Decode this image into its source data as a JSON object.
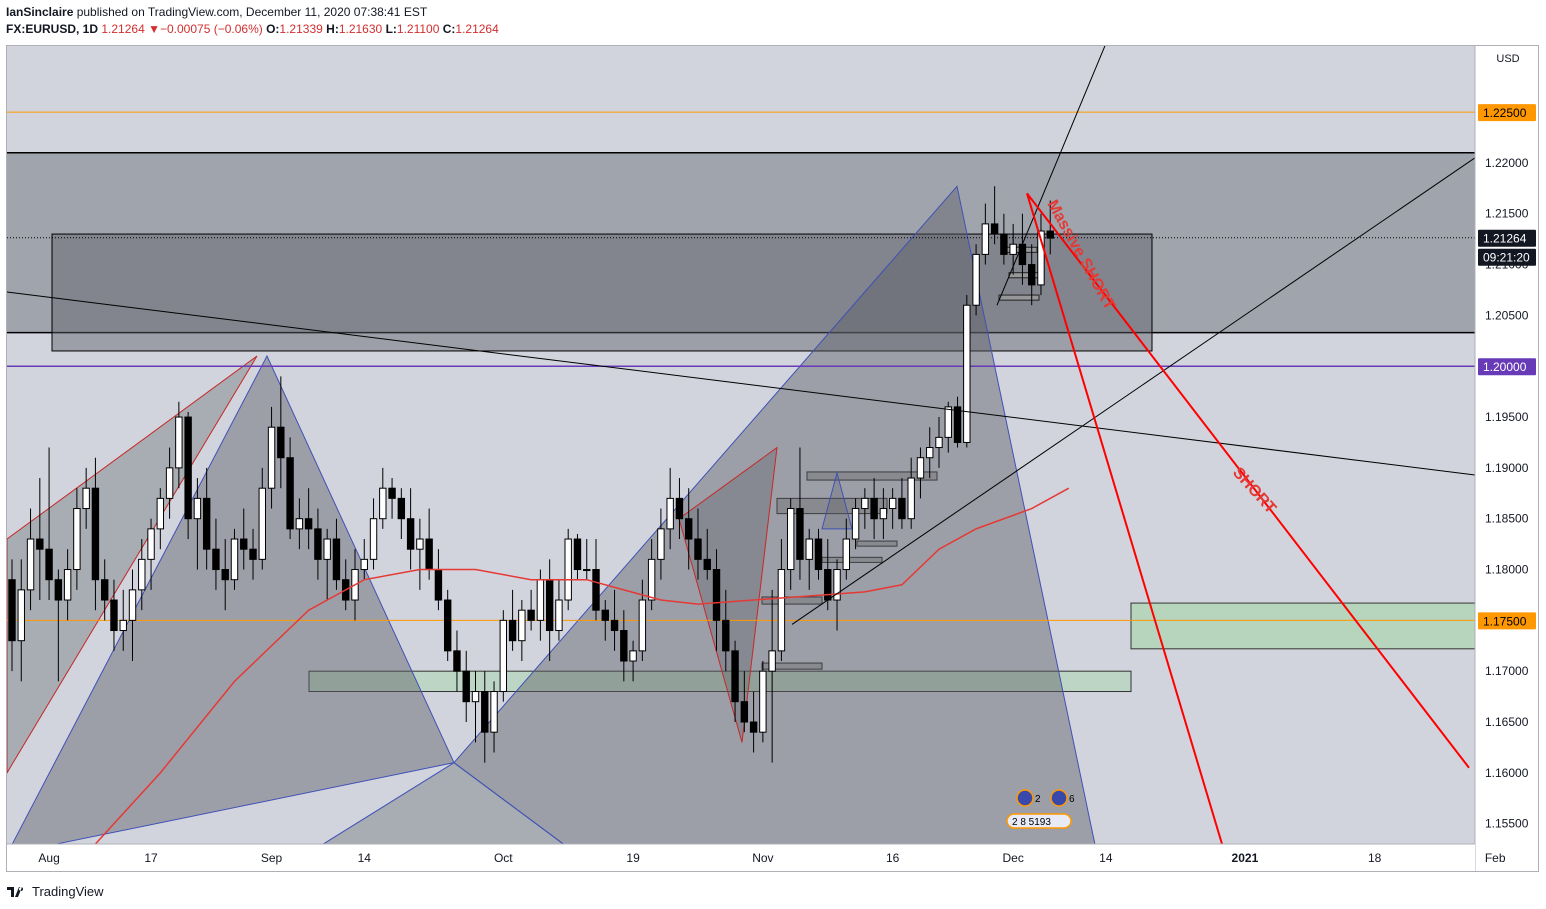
{
  "header": {
    "author": "IanSinclaire",
    "published_text": " published on TradingView.com, December 11, 2020 07:38:41 EST",
    "symbol": "FX:EURUSD, 1D",
    "last": "1.21264",
    "change_arrow": "▼",
    "change": "−0.00075 (−0.06%)",
    "o_label": "O:",
    "o_value": "1.21339",
    "h_label": "H:",
    "h_value": "1.21630",
    "l_label": "L:",
    "l_value": "1.21100",
    "c_label": "C:",
    "c_value": "1.21264"
  },
  "footer": {
    "brand": "TradingView"
  },
  "colors": {
    "background": "#d1d4dc",
    "zone": "#787b86",
    "up_candle": "#ffffff",
    "down_candle": "#000000",
    "ma_line": "#e53935",
    "short_line": "#ff0000",
    "orange_line": "#ff9800",
    "purple_line": "#673ab7",
    "green_zone": "#a5d6a7"
  },
  "chart_data": {
    "type": "candlestick",
    "currency": "USD",
    "yaxis_ticks": [
      "1.22000",
      "1.21500",
      "1.21000",
      "1.20500",
      "1.20000",
      "1.19500",
      "1.19000",
      "1.18500",
      "1.18000",
      "1.17500",
      "1.17000",
      "1.16500",
      "1.16000",
      "1.15500"
    ],
    "xaxis_ticks": [
      "Aug",
      "17",
      "Sep",
      "14",
      "Oct",
      "19",
      "Nov",
      "16",
      "Dec",
      "14",
      "2021",
      "18",
      "Feb"
    ],
    "price_labels": {
      "top_orange": "1.22500",
      "last_price": "1.21264",
      "countdown": "09:21:20",
      "purple": "1.20000",
      "orange": "1.17500"
    },
    "annotations": [
      "Massive SHORT",
      "SHORT"
    ],
    "event_badges": [
      "2",
      "6",
      "2 8 5193"
    ],
    "ylim": [
      1.153,
      1.2315
    ],
    "candles": [
      [
        1.179,
        1.181,
        1.17,
        1.173
      ],
      [
        1.173,
        1.181,
        1.169,
        1.178
      ],
      [
        1.178,
        1.186,
        1.176,
        1.183
      ],
      [
        1.183,
        1.189,
        1.177,
        1.182
      ],
      [
        1.182,
        1.192,
        1.177,
        1.179
      ],
      [
        1.179,
        1.18,
        1.169,
        1.177
      ],
      [
        1.177,
        1.182,
        1.175,
        1.18
      ],
      [
        1.18,
        1.188,
        1.178,
        1.186
      ],
      [
        1.186,
        1.19,
        1.184,
        1.188
      ],
      [
        1.188,
        1.191,
        1.176,
        1.179
      ],
      [
        1.179,
        1.181,
        1.175,
        1.177
      ],
      [
        1.177,
        1.179,
        1.172,
        1.174
      ],
      [
        1.174,
        1.178,
        1.172,
        1.175
      ],
      [
        1.175,
        1.18,
        1.171,
        1.178
      ],
      [
        1.178,
        1.183,
        1.176,
        1.181
      ],
      [
        1.181,
        1.185,
        1.178,
        1.184
      ],
      [
        1.184,
        1.188,
        1.182,
        1.187
      ],
      [
        1.187,
        1.192,
        1.185,
        1.19
      ],
      [
        1.19,
        1.1965,
        1.188,
        1.195
      ],
      [
        1.195,
        1.1955,
        1.183,
        1.185
      ],
      [
        1.185,
        1.189,
        1.18,
        1.187
      ],
      [
        1.187,
        1.19,
        1.18,
        1.182
      ],
      [
        1.182,
        1.185,
        1.178,
        1.18
      ],
      [
        1.18,
        1.183,
        1.176,
        1.179
      ],
      [
        1.179,
        1.184,
        1.178,
        1.183
      ],
      [
        1.183,
        1.186,
        1.18,
        1.182
      ],
      [
        1.182,
        1.184,
        1.179,
        1.181
      ],
      [
        1.181,
        1.19,
        1.18,
        1.188
      ],
      [
        1.188,
        1.196,
        1.186,
        1.194
      ],
      [
        1.194,
        1.199,
        1.188,
        1.191
      ],
      [
        1.191,
        1.193,
        1.183,
        1.184
      ],
      [
        1.184,
        1.187,
        1.182,
        1.185
      ],
      [
        1.185,
        1.188,
        1.182,
        1.184
      ],
      [
        1.184,
        1.186,
        1.179,
        1.181
      ],
      [
        1.181,
        1.184,
        1.177,
        1.183
      ],
      [
        1.183,
        1.185,
        1.178,
        1.179
      ],
      [
        1.179,
        1.181,
        1.176,
        1.177
      ],
      [
        1.177,
        1.182,
        1.175,
        1.18
      ],
      [
        1.18,
        1.183,
        1.179,
        1.181
      ],
      [
        1.181,
        1.187,
        1.18,
        1.185
      ],
      [
        1.185,
        1.19,
        1.184,
        1.188
      ],
      [
        1.188,
        1.189,
        1.185,
        1.187
      ],
      [
        1.187,
        1.188,
        1.183,
        1.185
      ],
      [
        1.185,
        1.188,
        1.18,
        1.182
      ],
      [
        1.182,
        1.185,
        1.178,
        1.183
      ],
      [
        1.183,
        1.186,
        1.179,
        1.18
      ],
      [
        1.18,
        1.182,
        1.176,
        1.177
      ],
      [
        1.177,
        1.178,
        1.171,
        1.172
      ],
      [
        1.172,
        1.174,
        1.168,
        1.17
      ],
      [
        1.17,
        1.172,
        1.165,
        1.167
      ],
      [
        1.167,
        1.17,
        1.163,
        1.168
      ],
      [
        1.168,
        1.17,
        1.161,
        1.164
      ],
      [
        1.164,
        1.169,
        1.162,
        1.168
      ],
      [
        1.168,
        1.176,
        1.167,
        1.175
      ],
      [
        1.175,
        1.178,
        1.172,
        1.173
      ],
      [
        1.173,
        1.177,
        1.171,
        1.176
      ],
      [
        1.176,
        1.178,
        1.174,
        1.175
      ],
      [
        1.175,
        1.18,
        1.173,
        1.179
      ],
      [
        1.179,
        1.181,
        1.171,
        1.174
      ],
      [
        1.174,
        1.179,
        1.173,
        1.177
      ],
      [
        1.177,
        1.184,
        1.176,
        1.183
      ],
      [
        1.183,
        1.1835,
        1.179,
        1.18
      ],
      [
        1.18,
        1.183,
        1.179,
        1.18
      ],
      [
        1.18,
        1.183,
        1.175,
        1.176
      ],
      [
        1.176,
        1.177,
        1.173,
        1.175
      ],
      [
        1.175,
        1.178,
        1.172,
        1.174
      ],
      [
        1.174,
        1.176,
        1.169,
        1.171
      ],
      [
        1.171,
        1.173,
        1.169,
        1.172
      ],
      [
        1.172,
        1.179,
        1.171,
        1.177
      ],
      [
        1.177,
        1.183,
        1.176,
        1.181
      ],
      [
        1.181,
        1.186,
        1.179,
        1.184
      ],
      [
        1.184,
        1.19,
        1.182,
        1.187
      ],
      [
        1.187,
        1.189,
        1.183,
        1.185
      ],
      [
        1.185,
        1.188,
        1.18,
        1.183
      ],
      [
        1.183,
        1.186,
        1.179,
        1.181
      ],
      [
        1.181,
        1.184,
        1.179,
        1.18
      ],
      [
        1.18,
        1.182,
        1.172,
        1.175
      ],
      [
        1.175,
        1.178,
        1.17,
        1.172
      ],
      [
        1.172,
        1.173,
        1.165,
        1.167
      ],
      [
        1.167,
        1.17,
        1.164,
        1.165
      ],
      [
        1.165,
        1.168,
        1.162,
        1.164
      ],
      [
        1.164,
        1.171,
        1.163,
        1.17
      ],
      [
        1.17,
        1.178,
        1.161,
        1.172
      ],
      [
        1.172,
        1.183,
        1.171,
        1.18
      ],
      [
        1.18,
        1.187,
        1.178,
        1.186
      ],
      [
        1.186,
        1.192,
        1.179,
        1.181
      ],
      [
        1.181,
        1.184,
        1.178,
        1.183
      ],
      [
        1.183,
        1.184,
        1.179,
        1.18
      ],
      [
        1.18,
        1.183,
        1.176,
        1.177
      ],
      [
        1.177,
        1.181,
        1.174,
        1.18
      ],
      [
        1.18,
        1.185,
        1.179,
        1.183
      ],
      [
        1.183,
        1.187,
        1.182,
        1.186
      ],
      [
        1.186,
        1.188,
        1.184,
        1.187
      ],
      [
        1.187,
        1.189,
        1.183,
        1.185
      ],
      [
        1.185,
        1.188,
        1.183,
        1.186
      ],
      [
        1.186,
        1.188,
        1.184,
        1.187
      ],
      [
        1.187,
        1.189,
        1.184,
        1.185
      ],
      [
        1.185,
        1.191,
        1.184,
        1.189
      ],
      [
        1.189,
        1.192,
        1.187,
        1.191
      ],
      [
        1.191,
        1.194,
        1.189,
        1.192
      ],
      [
        1.192,
        1.195,
        1.19,
        1.193
      ],
      [
        1.193,
        1.1965,
        1.1915,
        1.196
      ],
      [
        1.196,
        1.197,
        1.192,
        1.1925
      ],
      [
        1.1925,
        1.207,
        1.192,
        1.206
      ],
      [
        1.206,
        1.212,
        1.205,
        1.211
      ],
      [
        1.211,
        1.216,
        1.21,
        1.214
      ],
      [
        1.214,
        1.2177,
        1.212,
        1.213
      ],
      [
        1.213,
        1.215,
        1.21,
        1.211
      ],
      [
        1.211,
        1.214,
        1.209,
        1.212
      ],
      [
        1.212,
        1.215,
        1.208,
        1.21
      ],
      [
        1.21,
        1.212,
        1.206,
        1.208
      ],
      [
        1.208,
        1.215,
        1.207,
        1.2133
      ],
      [
        1.2133,
        1.2163,
        1.211,
        1.2126
      ]
    ],
    "ma": [
      [
        0,
        1.144
      ],
      [
        8,
        1.152
      ],
      [
        16,
        1.16
      ],
      [
        24,
        1.169
      ],
      [
        32,
        1.176
      ],
      [
        38,
        1.179
      ],
      [
        44,
        1.18
      ],
      [
        50,
        1.18
      ],
      [
        56,
        1.179
      ],
      [
        62,
        1.179
      ],
      [
        66,
        1.178
      ],
      [
        70,
        1.177
      ],
      [
        74,
        1.1766
      ],
      [
        80,
        1.177
      ],
      [
        86,
        1.1774
      ],
      [
        92,
        1.1778
      ],
      [
        96,
        1.1785
      ],
      [
        100,
        1.182
      ],
      [
        104,
        1.184
      ],
      [
        110,
        1.186
      ],
      [
        114,
        1.188
      ]
    ]
  }
}
